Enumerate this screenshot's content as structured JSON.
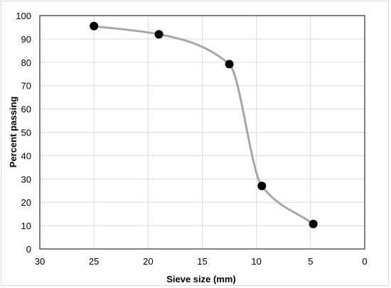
{
  "chart_data": {
    "type": "scatter",
    "title": "",
    "xlabel": "Sieve size (mm)",
    "ylabel": "Percent passing",
    "x_reversed": true,
    "xlim": [
      0,
      30
    ],
    "ylim": [
      0,
      100
    ],
    "x_ticks": [
      30,
      25,
      20,
      15,
      10,
      5,
      0
    ],
    "y_ticks": [
      0,
      10,
      20,
      30,
      40,
      50,
      60,
      70,
      80,
      90,
      100
    ],
    "grid": "vertical and horizontal major gridlines",
    "smooth_line": true,
    "series": [
      {
        "x": [
          25,
          19,
          12.5,
          9.5,
          4.75
        ],
        "y": [
          95.5,
          92,
          79.2,
          27,
          10.7
        ],
        "marker_color": "#000000",
        "line_color": "#a6a6a6"
      }
    ]
  }
}
